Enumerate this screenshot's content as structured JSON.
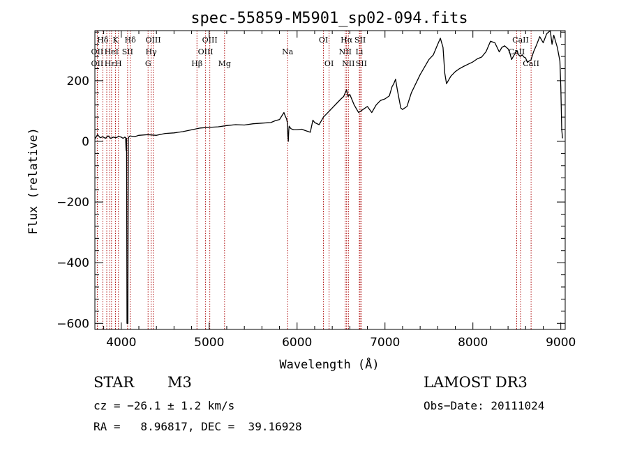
{
  "chart_data": {
    "type": "line",
    "title": "spec-55859-M5901_sp02-094.fits",
    "xlabel": "Wavelength (Å)",
    "ylabel": "Flux (relative)",
    "xlim": [
      3700,
      9050
    ],
    "ylim": [
      -620,
      365
    ],
    "xticks": [
      4000,
      5000,
      6000,
      7000,
      8000,
      9000
    ],
    "yticks": [
      -600,
      -400,
      -200,
      0,
      200
    ],
    "xtick_labels": [
      "4000",
      "5000",
      "6000",
      "7000",
      "8000",
      "9000"
    ],
    "ytick_labels": [
      "−600",
      "−400",
      "−200",
      "0",
      "200"
    ],
    "series": [
      {
        "name": "flux",
        "color": "#000000",
        "x": [
          3700,
          3730,
          3760,
          3790,
          3820,
          3850,
          3880,
          3910,
          3940,
          3970,
          4000,
          4020,
          4040,
          4050,
          4055,
          4060,
          4065,
          4075,
          4080,
          4085,
          4100,
          4150,
          4200,
          4300,
          4400,
          4500,
          4600,
          4700,
          4800,
          4900,
          5000,
          5100,
          5200,
          5300,
          5400,
          5500,
          5600,
          5700,
          5750,
          5800,
          5850,
          5870,
          5880,
          5890,
          5895,
          5900,
          5905,
          5910,
          5930,
          5960,
          6000,
          6050,
          6100,
          6150,
          6180,
          6200,
          6250,
          6300,
          6350,
          6400,
          6450,
          6500,
          6530,
          6563,
          6580,
          6600,
          6650,
          6700,
          6750,
          6800,
          6850,
          6900,
          6950,
          7000,
          7050,
          7080,
          7100,
          7120,
          7140,
          7160,
          7180,
          7200,
          7250,
          7300,
          7400,
          7500,
          7550,
          7600,
          7630,
          7650,
          7660,
          7680,
          7700,
          7750,
          7800,
          7850,
          7900,
          7950,
          8000,
          8050,
          8100,
          8150,
          8200,
          8250,
          8300,
          8330,
          8360,
          8400,
          8420,
          8440,
          8470,
          8500,
          8520,
          8540,
          8560,
          8580,
          8600,
          8620,
          8640,
          8660,
          8690,
          8720,
          8760,
          8800,
          8840,
          8880,
          8900,
          8920,
          8960,
          8990,
          9000,
          9010,
          9020
        ],
        "y": [
          8,
          22,
          12,
          15,
          10,
          18,
          10,
          14,
          12,
          16,
          14,
          10,
          14,
          12,
          -30,
          10,
          -600,
          -600,
          10,
          14,
          18,
          15,
          20,
          22,
          20,
          26,
          28,
          32,
          38,
          44,
          46,
          48,
          52,
          55,
          54,
          58,
          60,
          62,
          68,
          72,
          95,
          80,
          75,
          60,
          20,
          0,
          35,
          50,
          42,
          38,
          38,
          40,
          35,
          30,
          70,
          62,
          55,
          80,
          95,
          110,
          125,
          140,
          148,
          170,
          148,
          155,
          120,
          95,
          105,
          115,
          95,
          120,
          135,
          140,
          150,
          180,
          190,
          205,
          170,
          140,
          110,
          105,
          115,
          160,
          220,
          270,
          285,
          320,
          340,
          320,
          310,
          225,
          190,
          215,
          230,
          240,
          248,
          255,
          262,
          272,
          278,
          296,
          330,
          325,
          295,
          310,
          315,
          305,
          292,
          270,
          285,
          300,
          285,
          280,
          285,
          278,
          275,
          260,
          265,
          268,
          295,
          315,
          345,
          325,
          355,
          365,
          320,
          350,
          310,
          265,
          180,
          40,
          10
        ]
      }
    ],
    "line_ids": [
      {
        "label": "Hδ",
        "x": 3790,
        "row": 0
      },
      {
        "label": "K",
        "x": 3934,
        "row": 0
      },
      {
        "label": "Hδ",
        "x": 4102,
        "row": 0
      },
      {
        "label": "OIII",
        "x": 4363,
        "row": 0
      },
      {
        "label": "OIII",
        "x": 5007,
        "row": 0
      },
      {
        "label": "OI",
        "x": 6300,
        "row": 0
      },
      {
        "label": "Hα",
        "x": 6563,
        "row": 0
      },
      {
        "label": "SII",
        "x": 6717,
        "row": 0
      },
      {
        "label": "CaII",
        "x": 8542,
        "row": 0
      },
      {
        "label": "OII",
        "x": 3727,
        "row": 1
      },
      {
        "label": "HeI",
        "x": 3889,
        "row": 1
      },
      {
        "label": "SII",
        "x": 4072,
        "row": 1
      },
      {
        "label": "Hγ",
        "x": 4340,
        "row": 1
      },
      {
        "label": "OIII",
        "x": 4959,
        "row": 1
      },
      {
        "label": "Na",
        "x": 5893,
        "row": 1
      },
      {
        "label": "NII",
        "x": 6548,
        "row": 1
      },
      {
        "label": "Li",
        "x": 6708,
        "row": 1
      },
      {
        "label": "CaII",
        "x": 8498,
        "row": 1
      },
      {
        "label": "OII",
        "x": 3727,
        "row": 2
      },
      {
        "label": "Hε",
        "x": 3870,
        "row": 2
      },
      {
        "label": "H",
        "x": 3968,
        "row": 2
      },
      {
        "label": "G",
        "x": 4305,
        "row": 2
      },
      {
        "label": "Hβ",
        "x": 4861,
        "row": 2
      },
      {
        "label": "Mg",
        "x": 5175,
        "row": 2
      },
      {
        "label": "OI",
        "x": 6364,
        "row": 2
      },
      {
        "label": "NII",
        "x": 6584,
        "row": 2
      },
      {
        "label": "SII",
        "x": 6731,
        "row": 2
      },
      {
        "label": "CaII",
        "x": 8662,
        "row": 2
      }
    ],
    "line_positions": [
      3727,
      3729,
      3790,
      3835,
      3870,
      3889,
      3934,
      3968,
      4072,
      4102,
      4305,
      4340,
      4363,
      4861,
      4959,
      5007,
      5175,
      5893,
      6300,
      6364,
      6548,
      6563,
      6584,
      6708,
      6717,
      6731,
      8498,
      8542,
      8662
    ],
    "line_color": "#b01010"
  },
  "info": {
    "class": "STAR",
    "subclass": "M3",
    "survey": "LAMOST DR3",
    "cz": "cz = −26.1 ± 1.2 km/s",
    "obs_date": "Obs−Date: 20111024",
    "radec": "RA =   8.96817, DEC =  39.16928"
  }
}
